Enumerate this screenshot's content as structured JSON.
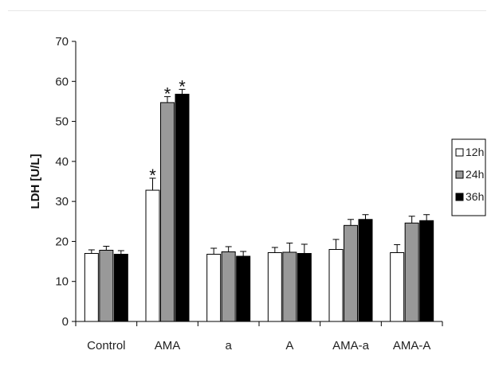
{
  "chart_data": {
    "type": "bar",
    "title": "",
    "xlabel": "",
    "ylabel": "LDH [U/L]",
    "ylim": [
      0,
      70
    ],
    "yticks": [
      0,
      10,
      20,
      30,
      40,
      50,
      60,
      70
    ],
    "grid": false,
    "legend_position": "right",
    "categories": [
      "Control",
      "AMA",
      "a",
      "A",
      "AMA-a",
      "AMA-A"
    ],
    "series": [
      {
        "name": "12h",
        "color": "#ffffff",
        "values": [
          17.0,
          32.8,
          16.8,
          17.2,
          18.0,
          17.2
        ],
        "errors": [
          0.9,
          3.0,
          1.5,
          1.3,
          2.5,
          2.0
        ],
        "significance": [
          "",
          "*",
          "",
          "",
          "",
          ""
        ]
      },
      {
        "name": "24h",
        "color": "#999999",
        "values": [
          17.8,
          54.7,
          17.4,
          17.3,
          24.0,
          24.6
        ],
        "errors": [
          1.0,
          1.5,
          1.3,
          2.3,
          1.5,
          1.7
        ],
        "significance": [
          "",
          "*",
          "",
          "",
          "",
          ""
        ]
      },
      {
        "name": "36h",
        "color": "#000000",
        "values": [
          16.8,
          56.8,
          16.3,
          17.0,
          25.5,
          25.2
        ],
        "errors": [
          0.9,
          1.2,
          1.2,
          2.3,
          1.2,
          1.5
        ],
        "significance": [
          "",
          "*",
          "",
          "",
          "",
          ""
        ]
      }
    ]
  }
}
